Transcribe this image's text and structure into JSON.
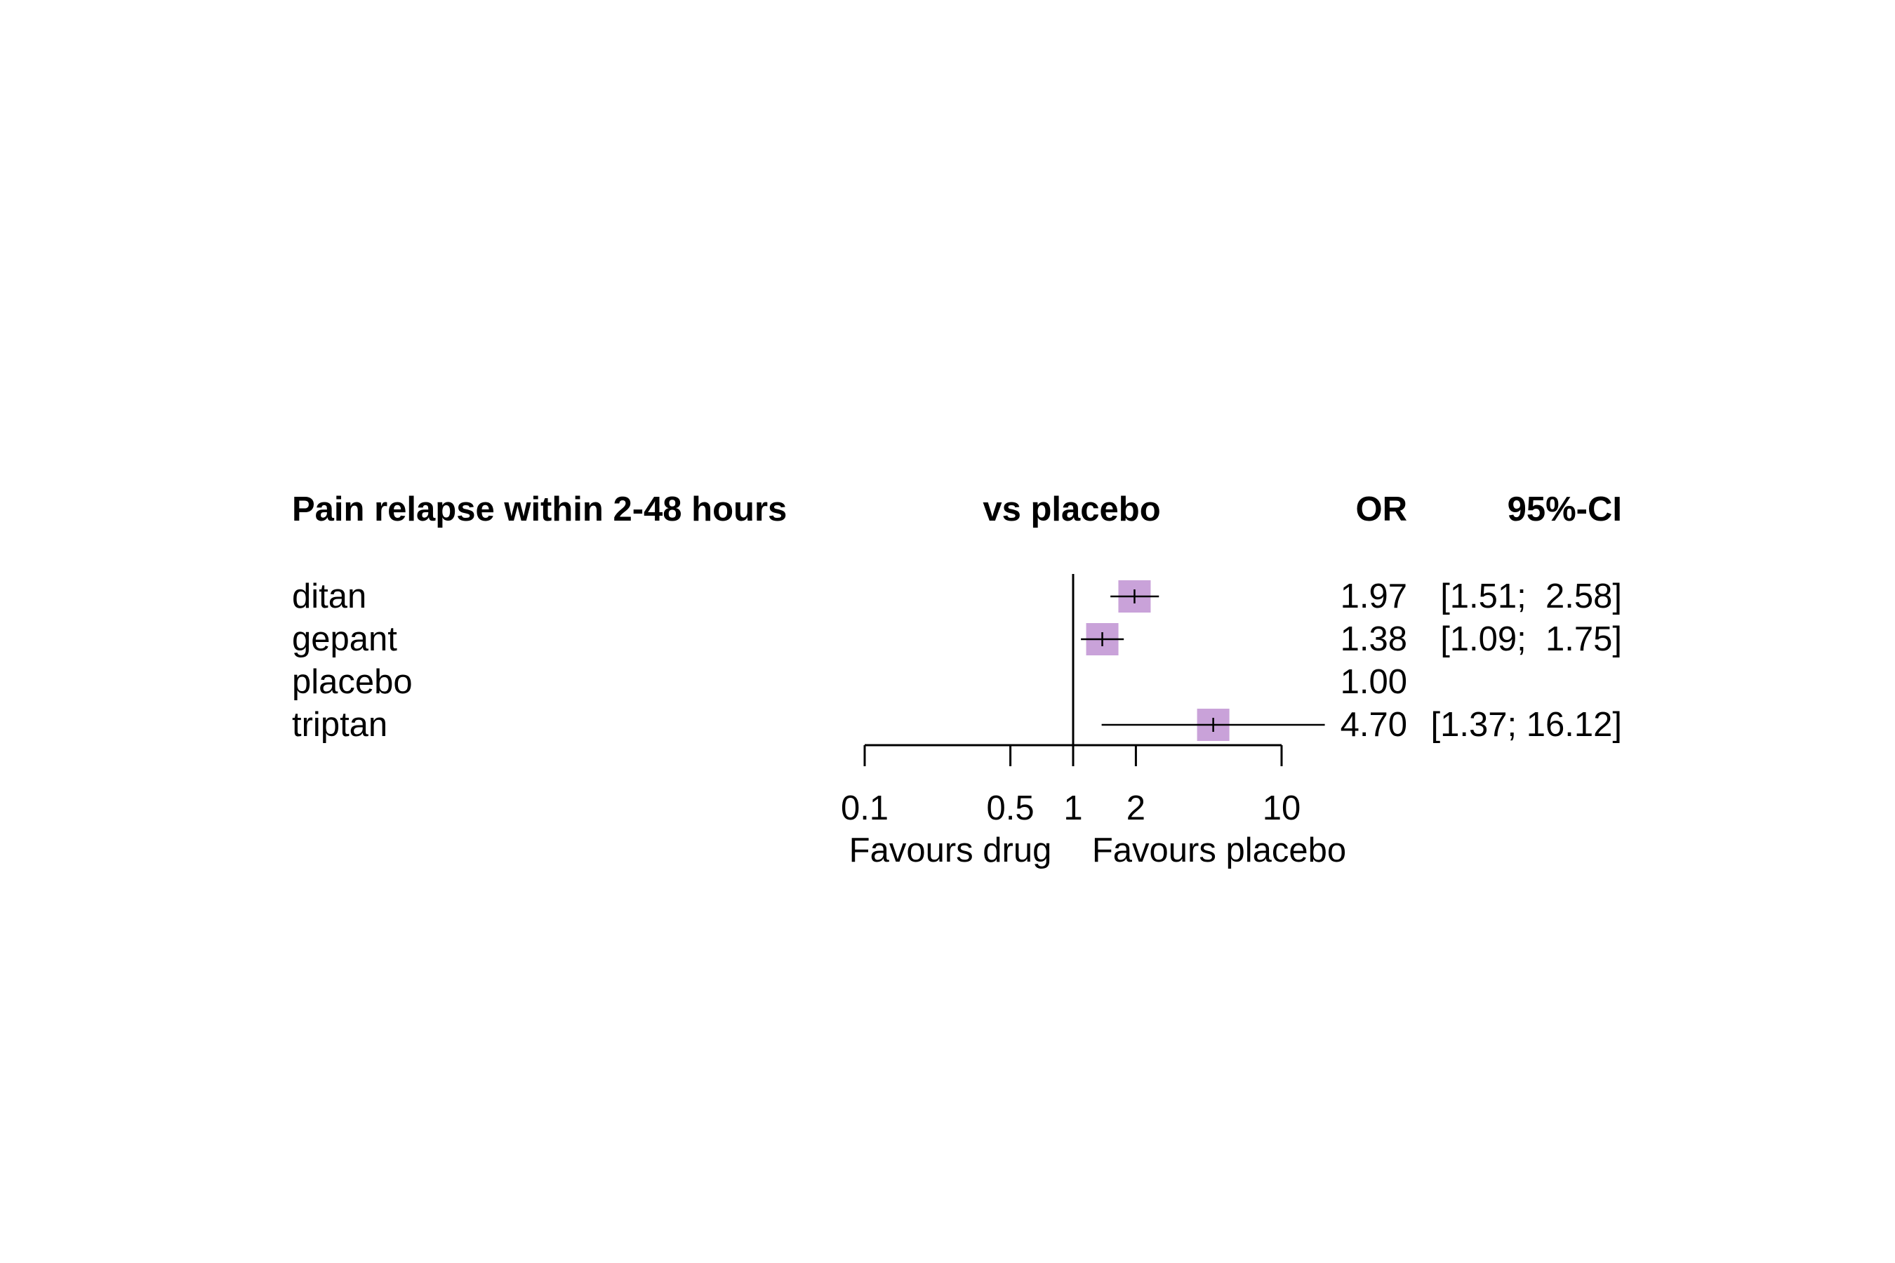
{
  "chart_data": {
    "type": "forest",
    "title": "Pain relapse within 2-48 hours",
    "columns": {
      "comparison": "vs placebo",
      "estimate": "OR",
      "ci": "95%-CI"
    },
    "rows": [
      {
        "label": "ditan",
        "or": 1.97,
        "lower": 1.51,
        "upper": 2.58,
        "or_text": "1.97",
        "ci_text": "[1.51;  2.58]"
      },
      {
        "label": "gepant",
        "or": 1.38,
        "lower": 1.09,
        "upper": 1.75,
        "or_text": "1.38",
        "ci_text": "[1.09;  1.75]"
      },
      {
        "label": "placebo",
        "or": 1.0,
        "lower": null,
        "upper": null,
        "or_text": "1.00",
        "ci_text": ""
      },
      {
        "label": "triptan",
        "or": 4.7,
        "lower": 1.37,
        "upper": 16.12,
        "or_text": "4.70",
        "ci_text": "[1.37; 16.12]"
      }
    ],
    "x_scale": "log",
    "xlim": [
      0.1,
      10
    ],
    "x_ticks": [
      0.1,
      0.5,
      1,
      2,
      10
    ],
    "x_tick_labels": [
      "0.1",
      "0.5",
      "1",
      "2",
      "10"
    ],
    "reference_line": 1,
    "xlabel_left": "Favours drug",
    "xlabel_right": "Favours placebo",
    "grid": false,
    "colors": {
      "marker": "#c9a2d9",
      "line": "#000000"
    }
  }
}
